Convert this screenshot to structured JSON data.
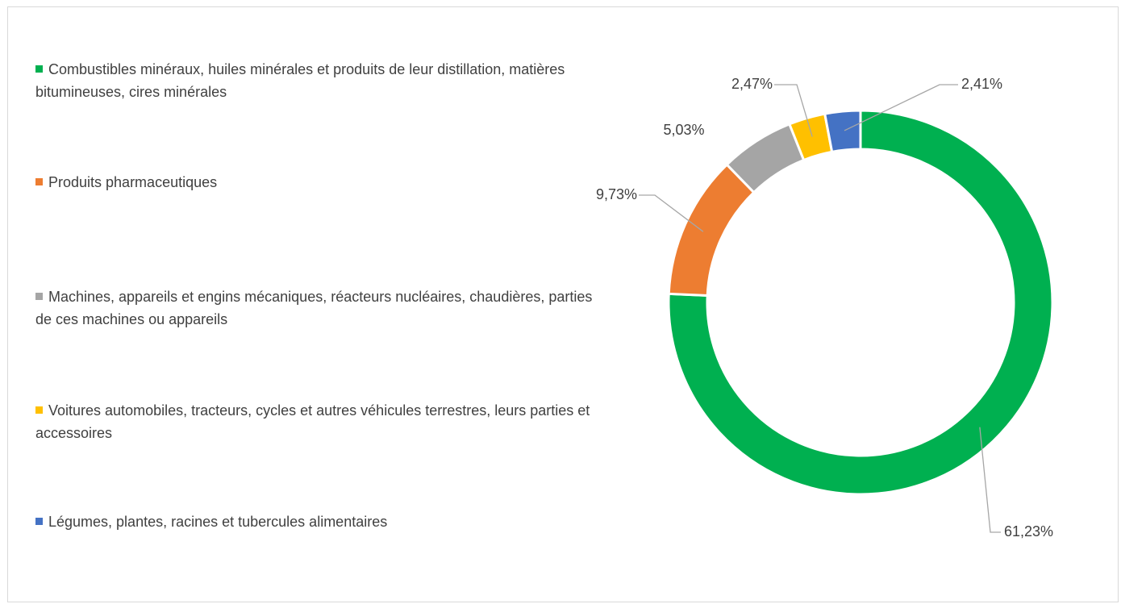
{
  "chart_data": {
    "type": "donut",
    "categories": [
      "Combustibles minéraux, huiles minérales et produits de leur distillation, matières bitumineuses, cires minérales",
      "Produits pharmaceutiques",
      "Machines, appareils et engins mécaniques, réacteurs nucléaires, chaudières, parties de ces machines ou appareils",
      "Voitures automobiles, tracteurs, cycles et autres véhicules terrestres, leurs parties et accessoires",
      "Légumes, plantes, racines et tubercules alimentaires"
    ],
    "values": [
      61.23,
      9.73,
      5.03,
      2.47,
      2.41
    ],
    "value_labels": [
      "61,23%",
      "9,73%",
      "5,03%",
      "2,47%",
      "2,41%"
    ],
    "colors": [
      "#00b050",
      "#ed7d31",
      "#a5a5a5",
      "#ffc000",
      "#4472c4"
    ],
    "legend": "left"
  }
}
